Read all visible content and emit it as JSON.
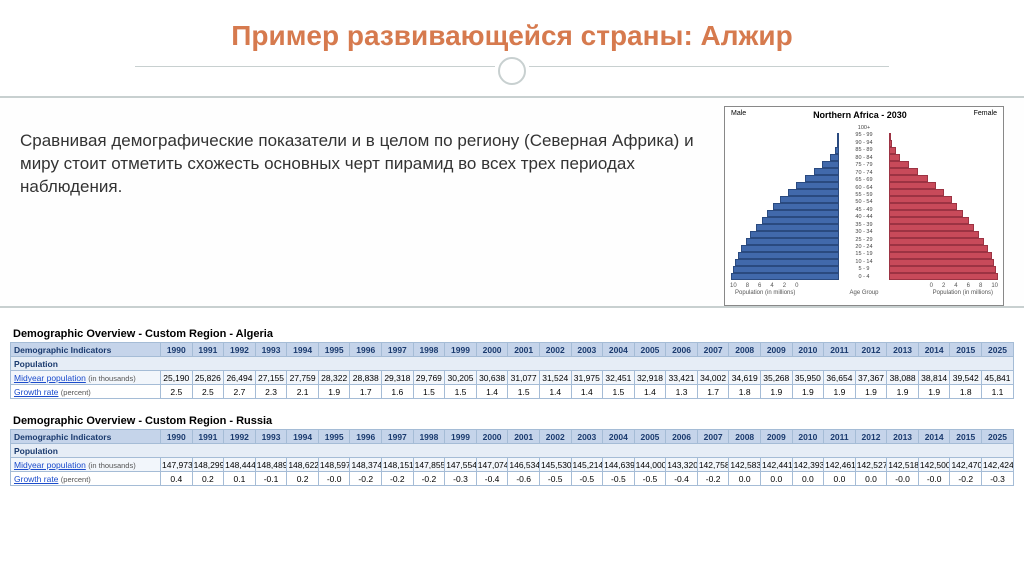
{
  "title": "Пример развивающейся страны: Алжир",
  "paragraph": "Сравнивая демографические показатели и в целом по региону (Северная Африка) и миру стоит отметить схожесть основных черт пирамид во всех трех периодах наблюдения.",
  "pyramid": {
    "title": "Northern Africa - 2030",
    "male_label": "Male",
    "female_label": "Female",
    "male_color": "#4169ab",
    "female_color": "#c84a5a",
    "age_labels": [
      "100+",
      "95 - 99",
      "90 - 94",
      "85 - 89",
      "80 - 84",
      "75 - 79",
      "70 - 74",
      "65 - 69",
      "60 - 64",
      "55 - 59",
      "50 - 54",
      "45 - 49",
      "40 - 44",
      "35 - 39",
      "30 - 34",
      "25 - 29",
      "20 - 24",
      "15 - 19",
      "10 - 14",
      "5 - 9",
      "0 - 4"
    ],
    "male_values": [
      0.1,
      0.2,
      0.4,
      0.8,
      1.5,
      2.2,
      3.0,
      3.8,
      4.5,
      5.2,
      5.8,
      6.3,
      6.8,
      7.3,
      7.8,
      8.2,
      8.6,
      8.9,
      9.1,
      9.3,
      9.5
    ],
    "female_values": [
      0.2,
      0.3,
      0.6,
      1.0,
      1.8,
      2.6,
      3.4,
      4.1,
      4.8,
      5.5,
      6.0,
      6.5,
      7.0,
      7.5,
      7.9,
      8.3,
      8.7,
      9.0,
      9.2,
      9.4,
      9.6
    ],
    "x_ticks_left": [
      "10",
      "8",
      "6",
      "4",
      "2",
      "0"
    ],
    "x_ticks_right": [
      "0",
      "2",
      "4",
      "6",
      "8",
      "10"
    ],
    "x_label_left": "Population (in millions)",
    "x_label_center": "Age Group",
    "x_label_right": "Population (in millions)"
  },
  "tables": [
    {
      "title": "Demographic Overview - Custom Region - Algeria",
      "header_col": "Demographic Indicators",
      "years": [
        "1990",
        "1991",
        "1992",
        "1993",
        "1994",
        "1995",
        "1996",
        "1997",
        "1998",
        "1999",
        "2000",
        "2001",
        "2002",
        "2003",
        "2004",
        "2005",
        "2006",
        "2007",
        "2008",
        "2009",
        "2010",
        "2011",
        "2012",
        "2013",
        "2014",
        "2015",
        "2025"
      ],
      "section": "Population",
      "rows": [
        {
          "label": "Midyear population",
          "unit": "(in thousands)",
          "data": [
            "25,190",
            "25,826",
            "26,494",
            "27,155",
            "27,759",
            "28,322",
            "28,838",
            "29,318",
            "29,769",
            "30,205",
            "30,638",
            "31,077",
            "31,524",
            "31,975",
            "32,451",
            "32,918",
            "33,421",
            "34,002",
            "34,619",
            "35,268",
            "35,950",
            "36,654",
            "37,367",
            "38,088",
            "38,814",
            "39,542",
            "45,841"
          ]
        },
        {
          "label": "Growth rate",
          "unit": "(percent)",
          "data": [
            "2.5",
            "2.5",
            "2.7",
            "2.3",
            "2.1",
            "1.9",
            "1.7",
            "1.6",
            "1.5",
            "1.5",
            "1.4",
            "1.5",
            "1.4",
            "1.4",
            "1.5",
            "1.4",
            "1.3",
            "1.7",
            "1.8",
            "1.9",
            "1.9",
            "1.9",
            "1.9",
            "1.9",
            "1.9",
            "1.8",
            "1.1"
          ]
        }
      ]
    },
    {
      "title": "Demographic Overview - Custom Region - Russia",
      "header_col": "Demographic Indicators",
      "years": [
        "1990",
        "1991",
        "1992",
        "1993",
        "1994",
        "1995",
        "1996",
        "1997",
        "1998",
        "1999",
        "2000",
        "2001",
        "2002",
        "2003",
        "2004",
        "2005",
        "2006",
        "2007",
        "2008",
        "2009",
        "2010",
        "2011",
        "2012",
        "2013",
        "2014",
        "2015",
        "2025"
      ],
      "section": "Population",
      "rows": [
        {
          "label": "Midyear population",
          "unit": "(in thousands)",
          "data": [
            "147,973",
            "148,299",
            "148,444",
            "148,489",
            "148,622",
            "148,597",
            "148,374",
            "148,151",
            "147,855",
            "147,554",
            "147,074",
            "146,534",
            "145,530",
            "145,214",
            "144,639",
            "144,000",
            "143,320",
            "142,758",
            "142,583",
            "142,441",
            "142,393",
            "142,461",
            "142,527",
            "142,518",
            "142,500",
            "142,470",
            "142,424"
          ]
        },
        {
          "label": "Growth rate",
          "unit": "(percent)",
          "data": [
            "0.4",
            "0.2",
            "0.1",
            "-0.1",
            "0.2",
            "-0.0",
            "-0.2",
            "-0.2",
            "-0.2",
            "-0.3",
            "-0.4",
            "-0.6",
            "-0.5",
            "-0.5",
            "-0.5",
            "-0.5",
            "-0.4",
            "-0.2",
            "0.0",
            "0.0",
            "0.0",
            "0.0",
            "0.0",
            "-0.0",
            "-0.0",
            "-0.2",
            "-0.3"
          ]
        }
      ]
    }
  ]
}
